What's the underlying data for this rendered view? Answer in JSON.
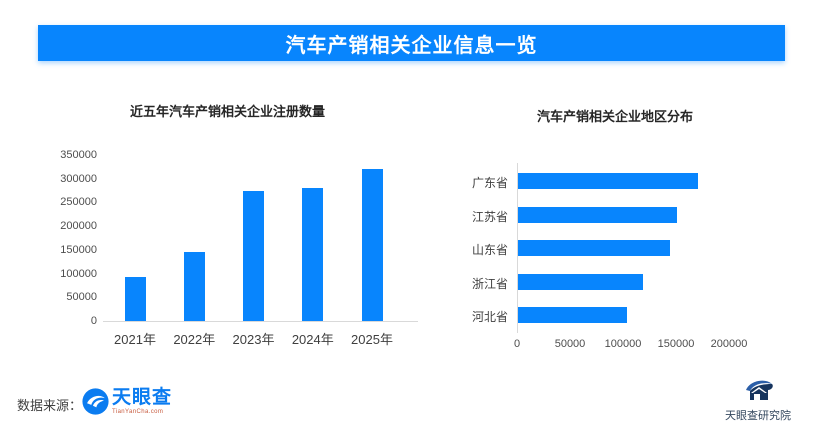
{
  "banner": {
    "title": "汽车产销相关企业信息一览"
  },
  "chart_data": [
    {
      "type": "bar",
      "title": "近五年汽车产销相关企业注册数量",
      "categories": [
        "2021年",
        "2022年",
        "2023年",
        "2024年",
        "2025年"
      ],
      "values": [
        93000,
        145000,
        275000,
        281000,
        321000
      ],
      "xlabel": "",
      "ylabel": "",
      "ylim": [
        0,
        350000
      ],
      "yticks": [
        350000,
        300000,
        250000,
        200000,
        150000,
        100000,
        50000,
        0
      ],
      "grid": false,
      "legend": "none"
    },
    {
      "type": "bar",
      "orientation": "horizontal",
      "title": "汽车产销相关企业地区分布",
      "categories": [
        "广东省",
        "江苏省",
        "山东省",
        "浙江省",
        "河北省"
      ],
      "values": [
        170000,
        150000,
        143000,
        118000,
        103000
      ],
      "xlabel": "",
      "ylabel": "",
      "xlim": [
        0,
        200000
      ],
      "xticks": [
        0,
        50000,
        100000,
        150000,
        200000
      ],
      "grid": false,
      "legend": "none"
    }
  ],
  "footer": {
    "source_label": "数据来源：",
    "source_logo_name": "天眼查",
    "source_logo_sub": "TianYanCha.com",
    "publisher": "天眼查研究院"
  },
  "colors": {
    "accent_blue": "#0885FD",
    "logo_blue": "#0B7CF0",
    "logo_sub_red": "#C75B3F",
    "publisher_navy": "#33475E",
    "icon_navy": "#17355E",
    "icon_swoosh_blue": "#2C5FA8"
  }
}
